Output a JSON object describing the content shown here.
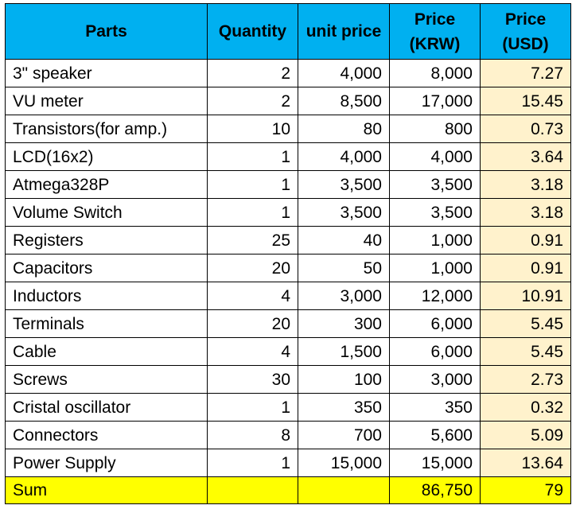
{
  "headers": {
    "parts": "Parts",
    "quantity": "Quantity",
    "unit_price": "unit price",
    "price_krw_line1": "Price",
    "price_krw_line2": "(KRW)",
    "price_usd_line1": "Price",
    "price_usd_line2": "(USD)"
  },
  "rows": [
    {
      "part": "3\" speaker",
      "qty": "2",
      "unit": "4,000",
      "krw": "8,000",
      "usd": "7.27"
    },
    {
      "part": "VU meter",
      "qty": "2",
      "unit": "8,500",
      "krw": "17,000",
      "usd": "15.45"
    },
    {
      "part": "Transistors(for amp.)",
      "qty": "10",
      "unit": "80",
      "krw": "800",
      "usd": "0.73"
    },
    {
      "part": "LCD(16x2)",
      "qty": "1",
      "unit": "4,000",
      "krw": "4,000",
      "usd": "3.64"
    },
    {
      "part": "Atmega328P",
      "qty": "1",
      "unit": "3,500",
      "krw": "3,500",
      "usd": "3.18"
    },
    {
      "part": "Volume Switch",
      "qty": "1",
      "unit": "3,500",
      "krw": "3,500",
      "usd": "3.18"
    },
    {
      "part": "Registers",
      "qty": "25",
      "unit": "40",
      "krw": "1,000",
      "usd": "0.91"
    },
    {
      "part": "Capacitors",
      "qty": "20",
      "unit": "50",
      "krw": "1,000",
      "usd": "0.91"
    },
    {
      "part": "Inductors",
      "qty": "4",
      "unit": "3,000",
      "krw": "12,000",
      "usd": "10.91"
    },
    {
      "part": "Terminals",
      "qty": "20",
      "unit": "300",
      "krw": "6,000",
      "usd": "5.45"
    },
    {
      "part": "Cable",
      "qty": "4",
      "unit": "1,500",
      "krw": "6,000",
      "usd": "5.45"
    },
    {
      "part": "Screws",
      "qty": "30",
      "unit": "100",
      "krw": "3,000",
      "usd": "2.73"
    },
    {
      "part": "Cristal oscillator",
      "qty": "1",
      "unit": "350",
      "krw": "350",
      "usd": "0.32"
    },
    {
      "part": "Connectors",
      "qty": "8",
      "unit": "700",
      "krw": "5,600",
      "usd": "5.09"
    },
    {
      "part": "Power Supply",
      "qty": "1",
      "unit": "15,000",
      "krw": "15,000",
      "usd": "13.64"
    }
  ],
  "sum": {
    "label": "Sum",
    "krw": "86,750",
    "usd": "79"
  },
  "colors": {
    "header_bg": "#00b0f0",
    "usd_column_bg": "#fff2cc",
    "sum_row_bg": "#ffff00"
  }
}
